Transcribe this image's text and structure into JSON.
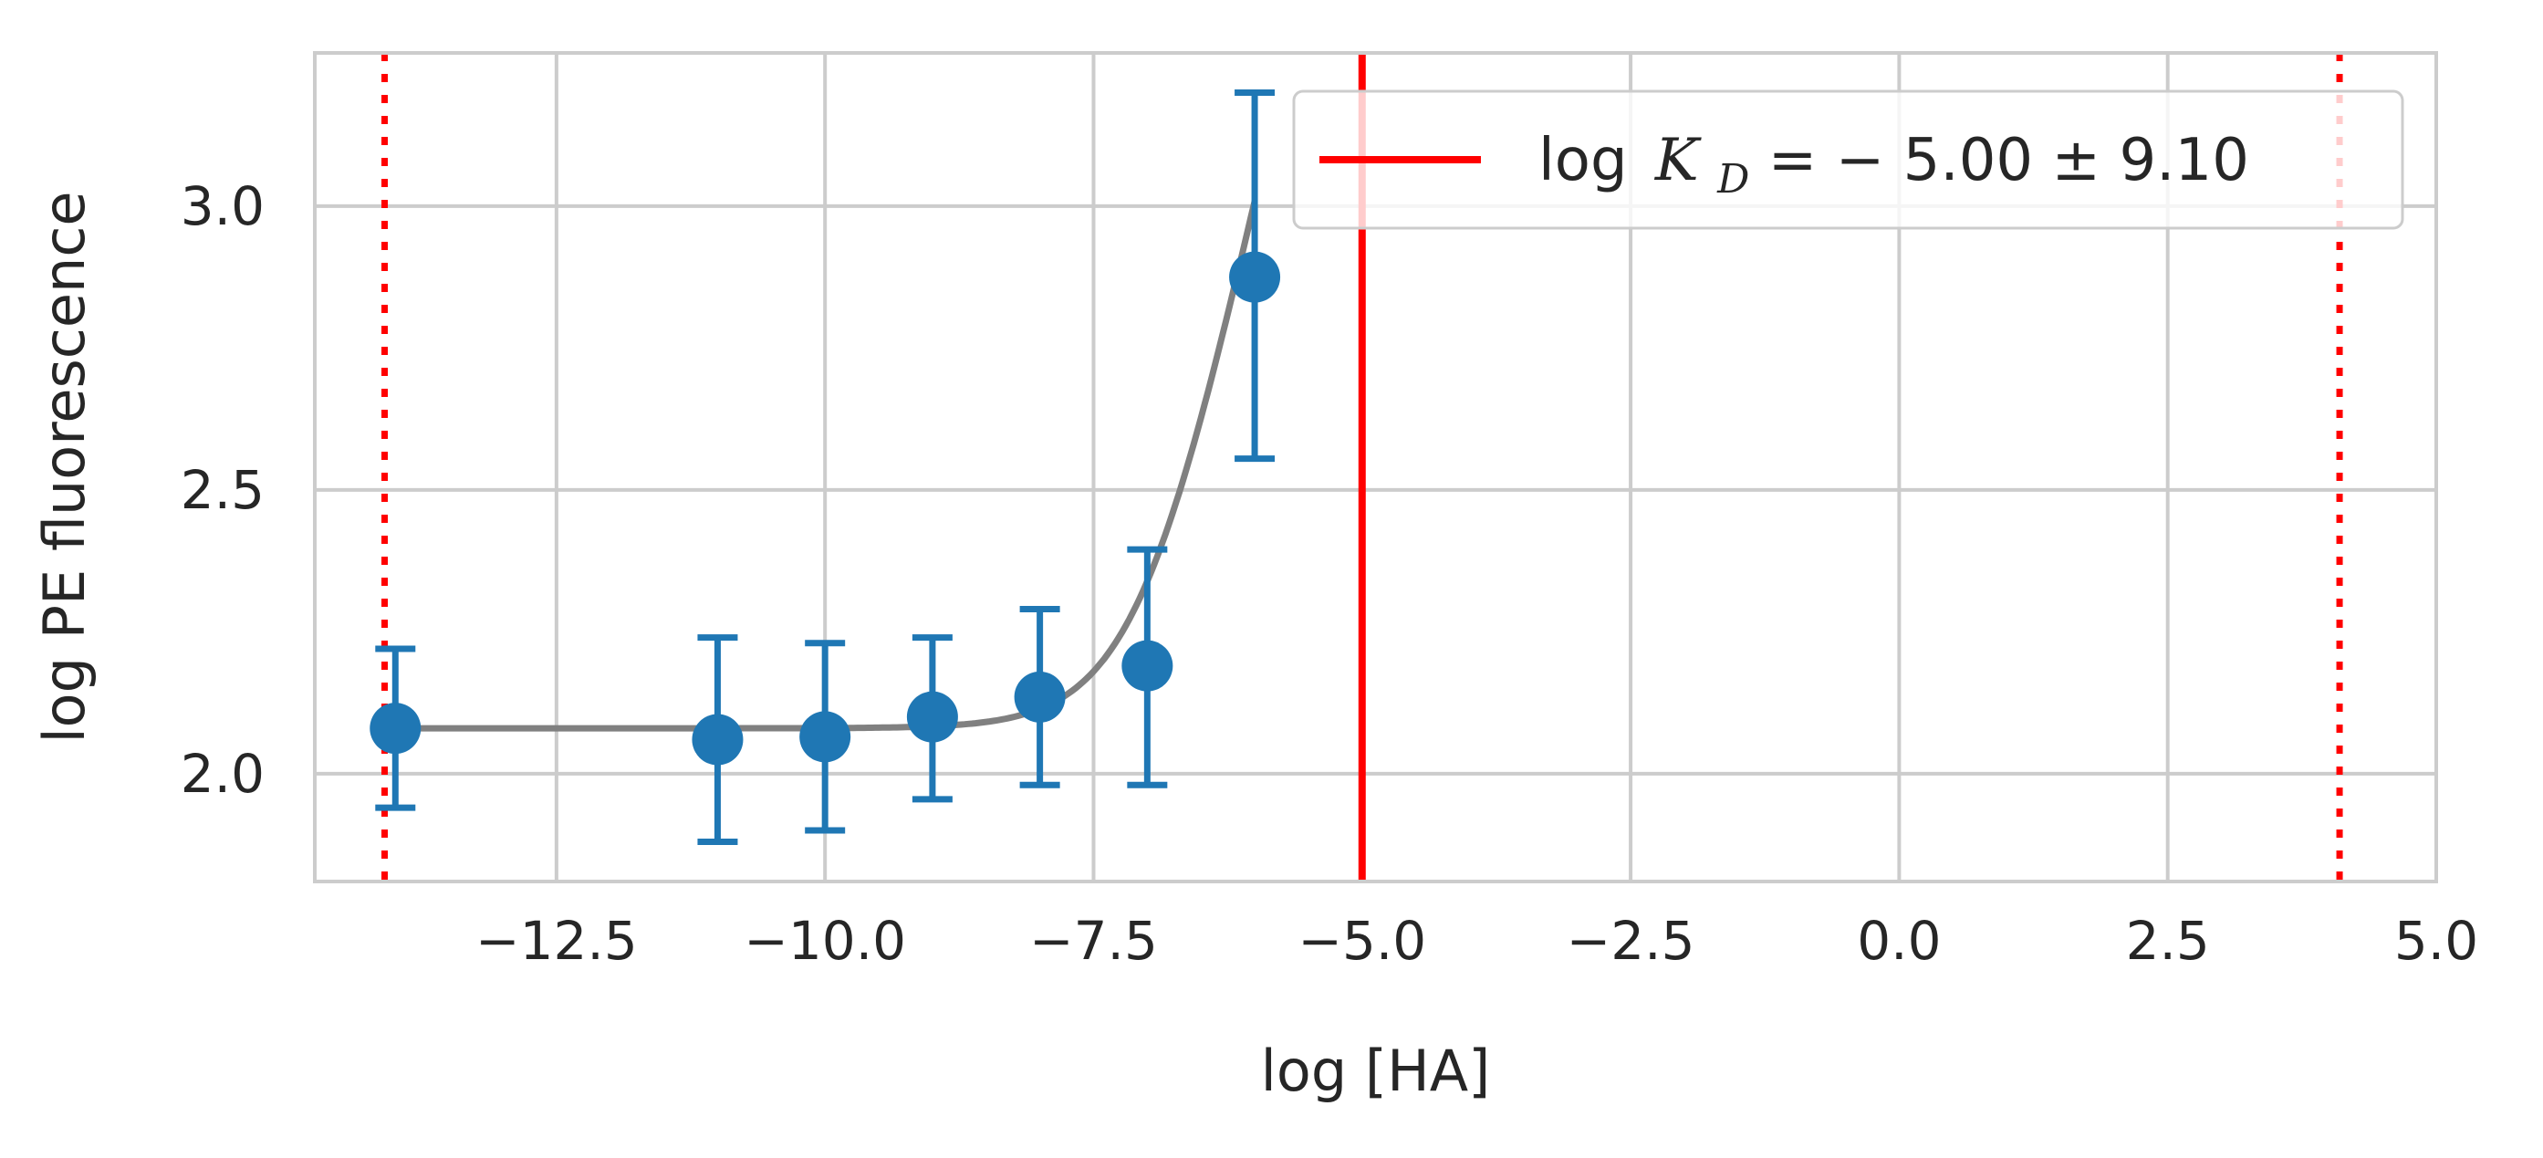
{
  "chart_data": {
    "type": "scatter",
    "xlabel": "log [HA]",
    "ylabel": "log PE fluorescence",
    "xlim": [
      -14.75,
      5.0
    ],
    "ylim": [
      1.81,
      3.27
    ],
    "x_ticks": [
      -12.5,
      -10.0,
      -7.5,
      -5.0,
      -2.5,
      0.0,
      2.5,
      5.0
    ],
    "x_tick_labels": [
      "−12.5",
      "−10.0",
      "−7.5",
      "−5.0",
      "−2.5",
      "0.0",
      "2.5",
      "5.0"
    ],
    "y_ticks": [
      2.0,
      2.5,
      3.0
    ],
    "y_tick_labels": [
      "2.0",
      "2.5",
      "3.0"
    ],
    "grid": true,
    "legend_position": "top-right",
    "colors": {
      "points": "#1f77b4",
      "fit": "#808080",
      "kd_line": "#ff0000",
      "grid": "#cccccc",
      "frame": "#cccccc"
    },
    "series": [
      {
        "type": "errorbar",
        "points": [
          {
            "x": -14.0,
            "y": 2.08,
            "yerr_low": 1.94,
            "yerr_high": 2.22
          },
          {
            "x": -11.0,
            "y": 2.06,
            "yerr_low": 1.88,
            "yerr_high": 2.24
          },
          {
            "x": -10.0,
            "y": 2.065,
            "yerr_low": 1.9,
            "yerr_high": 2.23
          },
          {
            "x": -9.0,
            "y": 2.1,
            "yerr_low": 1.955,
            "yerr_high": 2.24
          },
          {
            "x": -8.0,
            "y": 2.135,
            "yerr_low": 1.98,
            "yerr_high": 2.29
          },
          {
            "x": -7.0,
            "y": 2.19,
            "yerr_low": 1.98,
            "yerr_high": 2.395
          },
          {
            "x": -6.0,
            "y": 2.875,
            "yerr_low": 2.555,
            "yerr_high": 3.2
          }
        ]
      },
      {
        "type": "line",
        "style": "fit",
        "x_range": [
          -14.0,
          -6.0
        ],
        "model": {
          "bottom": 2.08,
          "top_offset": 9.9,
          "log_kd": -5.0,
          "log_scale": true
        }
      }
    ],
    "vertical_lines": [
      {
        "x": -5.0,
        "style": "solid",
        "legend": true
      },
      {
        "x": -14.1,
        "style": "dotted"
      },
      {
        "x": 4.1,
        "style": "dotted"
      }
    ],
    "legend": {
      "entries": [
        {
          "text_prefix": "log",
          "text_var": "K",
          "text_sub": "D",
          "text_suffix": " = − 5.00 ± 9.10"
        }
      ]
    }
  }
}
